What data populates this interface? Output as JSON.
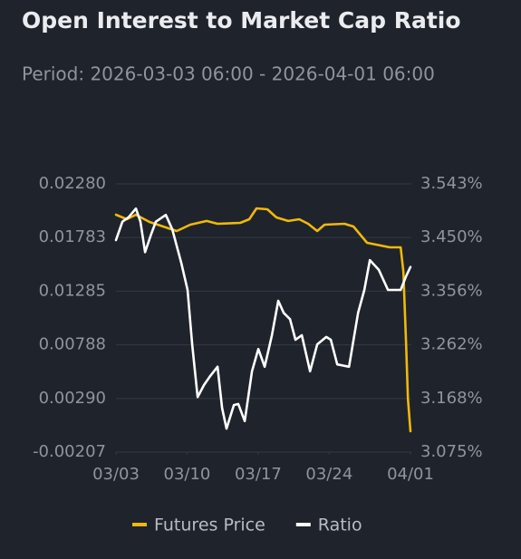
{
  "chart_data": {
    "type": "line",
    "title": "Open Interest to Market Cap Ratio",
    "subtitle": "Period: 2026-03-03 06:00 - 2026-04-01 06:00",
    "xlim": [
      0,
      29
    ],
    "xticks": [
      {
        "value": 0,
        "label": "03/03"
      },
      {
        "value": 7,
        "label": "03/10"
      },
      {
        "value": 14,
        "label": "03/17"
      },
      {
        "value": 21,
        "label": "03/24"
      },
      {
        "value": 29,
        "label": "04/01"
      }
    ],
    "ylim": [
      -0.00207,
      0.0228
    ],
    "yticks": [
      {
        "value": 0.0228,
        "label": "0.02280"
      },
      0.01783,
      0.01285,
      0.00788,
      {
        "value": 0.0029,
        "label": "0.00290"
      },
      -0.00207
    ],
    "y2lim": [
      3.075,
      3.543
    ],
    "y2ticks": [
      {
        "value": 3.543,
        "label": "3.543%"
      },
      {
        "value": 3.45,
        "label": "3.450%"
      },
      {
        "value": 3.356,
        "label": "3.356%"
      },
      {
        "value": 3.262,
        "label": "3.262%"
      },
      {
        "value": 3.168,
        "label": "3.168%"
      },
      {
        "value": 3.075,
        "label": "3.075%"
      }
    ],
    "grid": true,
    "series": [
      {
        "name": "Futures Price",
        "color": "#f0b90b",
        "x": [
          0,
          1.07,
          1.96,
          3.3,
          4.64,
          5.98,
          7.32,
          8.93,
          10,
          12.23,
          13.13,
          13.84,
          14.91,
          15.8,
          16.96,
          18.04,
          18.93,
          19.82,
          20.54,
          22.5,
          23.39,
          24.73,
          26.07,
          26.96,
          28.04,
          28.3,
          28.57,
          28.75,
          29
        ],
        "values": [
          0.01994,
          0.01952,
          0.01994,
          0.01927,
          0.01885,
          0.01843,
          0.01902,
          0.01936,
          0.0191,
          0.01919,
          0.01952,
          0.02053,
          0.02045,
          0.01969,
          0.01936,
          0.01952,
          0.0191,
          0.01843,
          0.01902,
          0.0191,
          0.01885,
          0.01734,
          0.01709,
          0.01692,
          0.01692,
          0.01465,
          0.00793,
          0.00289,
          -0.00014
        ]
      },
      {
        "name": "Ratio",
        "color": "#ffffff",
        "axis": "y2",
        "x": [
          0,
          0.63,
          1.25,
          1.96,
          2.41,
          2.86,
          3.48,
          3.93,
          4.91,
          5.54,
          6.43,
          7.05,
          7.5,
          8.04,
          8.66,
          9.29,
          10,
          10.45,
          10.89,
          11.61,
          12.05,
          12.68,
          13.39,
          14.02,
          14.64,
          15.36,
          15.98,
          16.52,
          17.14,
          17.68,
          18.3,
          19.11,
          19.82,
          20.71,
          21.16,
          21.79,
          22.95,
          23.84,
          24.46,
          25,
          25.89,
          26.79,
          28.04,
          28.57,
          29
        ],
        "values": [
          3.445,
          3.477,
          3.485,
          3.5,
          3.477,
          3.424,
          3.456,
          3.477,
          3.489,
          3.464,
          3.405,
          3.358,
          3.263,
          3.171,
          3.192,
          3.208,
          3.224,
          3.152,
          3.116,
          3.157,
          3.159,
          3.129,
          3.216,
          3.255,
          3.224,
          3.279,
          3.339,
          3.318,
          3.307,
          3.271,
          3.279,
          3.216,
          3.263,
          3.276,
          3.271,
          3.228,
          3.224,
          3.318,
          3.358,
          3.41,
          3.393,
          3.358,
          3.358,
          3.382,
          3.398
        ]
      }
    ]
  }
}
